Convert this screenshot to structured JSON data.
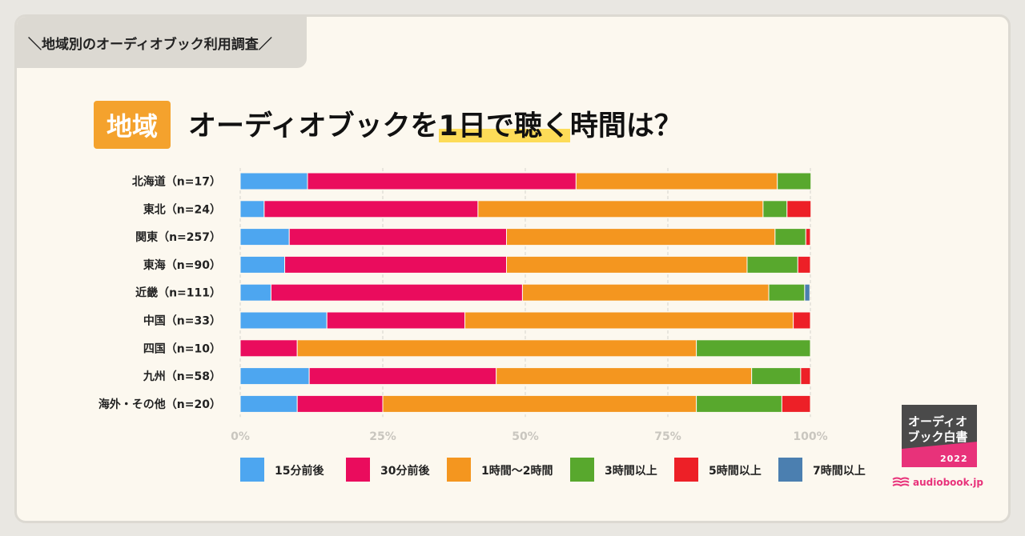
{
  "header": {
    "tab_label": "＼地域別のオーディオブック利用調査／",
    "badge": "地域",
    "title_pre": "オーディオブックを",
    "title_hl": "1日で聴く",
    "title_post": "時間は？"
  },
  "logo": {
    "line1": "オーディオ",
    "line2": "ブック白書",
    "year": "2022",
    "brand": "audiobook.jp"
  },
  "colors": {
    "card_bg": "#fcf8ef",
    "accent_orange": "#f4a22d",
    "highlight_yellow": "#fddc58",
    "logo_dark": "#4a4a4a",
    "logo_pink": "#e8327a"
  },
  "chart_data": {
    "type": "bar",
    "orientation": "horizontal",
    "stacked": true,
    "title": "オーディオブックを1日で聴く時間は？",
    "categories": [
      "北海道（n=17）",
      "東北（n=24）",
      "関東（n=257）",
      "東海（n=90）",
      "近畿（n=111）",
      "中国（n=33）",
      "四国（n=10）",
      "九州（n=58）",
      "海外・その他（n=20）"
    ],
    "xlim": [
      0,
      100
    ],
    "x_ticks": [
      "0%",
      "25%",
      "50%",
      "75%",
      "100%"
    ],
    "grid": true,
    "legend_position": "bottom",
    "series": [
      {
        "name": "15分前後",
        "color": "#4da6f0",
        "values": [
          11.8,
          4.2,
          8.6,
          7.8,
          5.4,
          15.2,
          0,
          12.1,
          10.0
        ]
      },
      {
        "name": "30分前後",
        "color": "#ea0c5d",
        "values": [
          47.1,
          37.5,
          38.1,
          38.9,
          44.1,
          24.2,
          10.0,
          32.8,
          15.0
        ]
      },
      {
        "name": "1時間〜2時間",
        "color": "#f4961f",
        "values": [
          35.3,
          50.0,
          47.1,
          42.2,
          43.2,
          57.6,
          70.0,
          44.8,
          55.0
        ]
      },
      {
        "name": "3時間以上",
        "color": "#58a82d",
        "values": [
          5.9,
          4.2,
          5.4,
          8.9,
          6.3,
          0,
          20.0,
          8.6,
          15.0
        ]
      },
      {
        "name": "5時間以上",
        "color": "#ed2027",
        "values": [
          0,
          4.2,
          0.8,
          2.2,
          0,
          3.0,
          0,
          1.7,
          5.0
        ]
      },
      {
        "name": "7時間以上",
        "color": "#4b7fb0",
        "values": [
          0,
          0,
          0,
          0,
          0.9,
          0,
          0,
          0,
          0
        ]
      }
    ]
  }
}
